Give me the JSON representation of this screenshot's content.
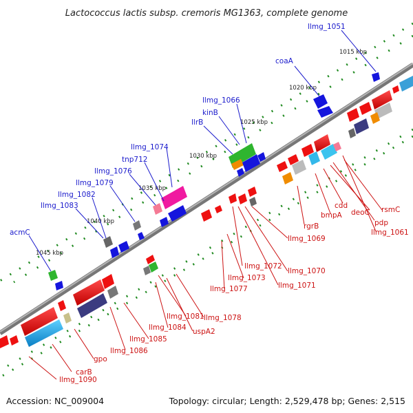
{
  "title": "Lactococcus lactis subsp. cremoris MG1363, complete genome",
  "accession": "Accession: NC_009004",
  "topology": "Topology: circular; Length: 2,529,478 bp; Genes: 2,515",
  "colors": {
    "top_label": "#1a1acc",
    "bottom_label": "#cc1111",
    "tick": "#1f8a1f",
    "backbone": "#8c8c8c"
  },
  "scale_labels": [
    "1015 kbp",
    "1020 kbp",
    "1025 kbp",
    "1030 kbp",
    "1035 kbp",
    "1040 kbp",
    "1045 kbp"
  ],
  "top_labels": [
    "llmg_1051",
    "coaA",
    "llmg_1066",
    "kinB",
    "llrB",
    "llmg_1074",
    "tnp712",
    "llmg_1076",
    "llmg_1079",
    "llmg_1082",
    "llmg_1083",
    "acmC"
  ],
  "bottom_labels": [
    "rsmC",
    "deoC",
    "cdd",
    "pdp",
    "bmpA",
    "llmg_1061",
    "rgrB",
    "llmg_1069",
    "llmg_1070",
    "llmg_1072",
    "llmg_1071",
    "llmg_1073",
    "llmg_1077",
    "llmg_1078",
    "llmg_1081",
    "uspA2",
    "llmg_1084",
    "llmg_1085",
    "llmg_1086",
    "gpo",
    "carB",
    "llmg_1090"
  ]
}
